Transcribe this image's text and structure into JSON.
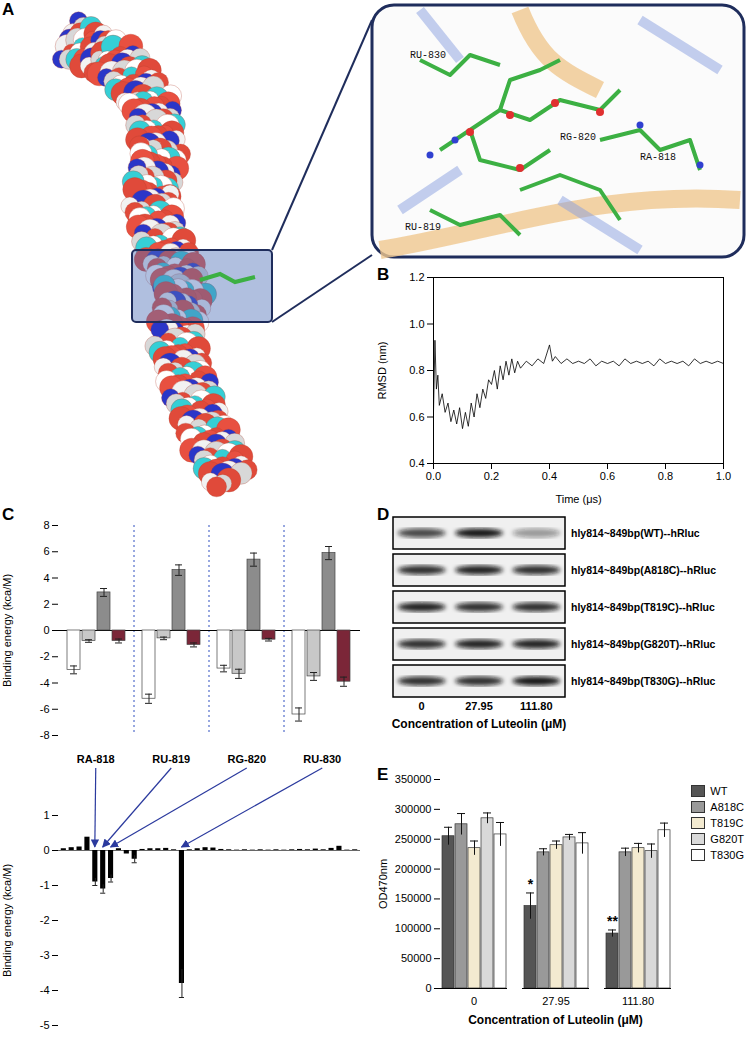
{
  "panels": {
    "A": {
      "label": "A",
      "residues": [
        "RU-830",
        "RG-820",
        "RA-818",
        "RU-819"
      ]
    },
    "D": {
      "label": "D",
      "rows": [
        {
          "label": "hly814~849bp(WT)--hRluc",
          "bands": [
            0.75,
            0.95,
            0.4
          ]
        },
        {
          "label": "hly814~849bp(A818C)--hRluc",
          "bands": [
            0.85,
            0.9,
            0.85
          ]
        },
        {
          "label": "hly814~849bp(T819C)--hRluc",
          "bands": [
            0.9,
            0.85,
            0.85
          ]
        },
        {
          "label": "hly814~849bp(G820T)--hRluc",
          "bands": [
            0.85,
            0.9,
            0.9
          ]
        },
        {
          "label": "hly814~849bp(T830G)--hRluc",
          "bands": [
            0.85,
            0.85,
            0.95
          ]
        }
      ],
      "lanes": [
        "0",
        "27.95",
        "111.80"
      ],
      "xlabel": "Concentration of Luteolin (μM)"
    }
  },
  "chart_data": [
    {
      "type": "line",
      "title": "B",
      "xlabel": "Time (μs)",
      "ylabel": "RMSD (nm)",
      "color": "#000000",
      "x": [
        0,
        0.005,
        0.01,
        0.015,
        0.02,
        0.03,
        0.04,
        0.05,
        0.06,
        0.07,
        0.08,
        0.09,
        0.1,
        0.11,
        0.12,
        0.13,
        0.14,
        0.15,
        0.16,
        0.17,
        0.18,
        0.19,
        0.2,
        0.21,
        0.22,
        0.23,
        0.24,
        0.25,
        0.26,
        0.27,
        0.28,
        0.29,
        0.3,
        0.32,
        0.34,
        0.36,
        0.38,
        0.4,
        0.41,
        0.42,
        0.44,
        0.46,
        0.48,
        0.5,
        0.52,
        0.54,
        0.56,
        0.58,
        0.6,
        0.62,
        0.64,
        0.66,
        0.68,
        0.7,
        0.72,
        0.74,
        0.76,
        0.78,
        0.8,
        0.82,
        0.84,
        0.86,
        0.88,
        0.9,
        0.92,
        0.94,
        0.96,
        0.98,
        1.0
      ],
      "values": [
        0.62,
        0.93,
        0.72,
        0.78,
        0.65,
        0.7,
        0.62,
        0.66,
        0.58,
        0.63,
        0.57,
        0.64,
        0.55,
        0.62,
        0.56,
        0.66,
        0.6,
        0.7,
        0.64,
        0.72,
        0.68,
        0.76,
        0.74,
        0.8,
        0.72,
        0.82,
        0.76,
        0.84,
        0.78,
        0.85,
        0.79,
        0.84,
        0.81,
        0.84,
        0.82,
        0.85,
        0.83,
        0.91,
        0.84,
        0.86,
        0.83,
        0.85,
        0.83,
        0.84,
        0.83,
        0.85,
        0.82,
        0.84,
        0.83,
        0.84,
        0.82,
        0.85,
        0.83,
        0.84,
        0.83,
        0.84,
        0.82,
        0.85,
        0.83,
        0.84,
        0.83,
        0.84,
        0.82,
        0.85,
        0.83,
        0.84,
        0.83,
        0.84,
        0.83
      ],
      "xlim": [
        0,
        1
      ],
      "xticks": [
        {
          "value": 0,
          "label": "0.0"
        },
        0.2,
        0.4,
        0.6,
        0.8,
        {
          "value": 1,
          "label": "1.0"
        }
      ],
      "ylim": [
        0.4,
        1.2
      ],
      "yticks": [
        0.4,
        0.6,
        0.8,
        {
          "value": 1,
          "label": "1.0"
        },
        1.2
      ]
    },
    {
      "type": "bar",
      "title": "C",
      "ylabel": "Binding energy (kca/M)",
      "tick_labels": "y",
      "categories": [
        null,
        null,
        null,
        null
      ],
      "series": [
        {
          "color": "#ffffff",
          "values": [
            -3.0,
            -5.2,
            -2.9,
            -6.4
          ],
          "errors": [
            0.3,
            0.35,
            0.25,
            0.5
          ]
        },
        {
          "color": "#c8c8c8",
          "values": [
            -0.8,
            -0.6,
            -3.3,
            -3.5
          ],
          "errors": [
            0.1,
            0.1,
            0.35,
            0.3
          ]
        },
        {
          "color": "#8c8c8c",
          "values": [
            2.9,
            4.6,
            5.4,
            5.9
          ],
          "errors": [
            0.3,
            0.4,
            0.5,
            0.5
          ]
        },
        {
          "color": "#7b2638",
          "values": [
            -0.8,
            -1.1,
            -0.7,
            -3.9
          ],
          "errors": [
            0.15,
            0.15,
            0.1,
            0.35
          ]
        }
      ],
      "ylim": [
        -8,
        8
      ],
      "yticks": [
        -8,
        -6,
        -4,
        -2,
        0,
        2,
        4,
        6,
        8
      ]
    },
    {
      "type": "bar",
      "ylabel": "Binding energy (kca/M)",
      "tick_labels": "y",
      "color": "#000000",
      "categories": [
        null,
        null,
        null,
        null,
        null,
        null,
        null,
        null,
        null,
        null,
        null,
        null,
        null,
        null,
        null,
        null,
        null,
        null,
        null,
        null,
        null,
        null,
        null,
        null,
        null,
        null,
        null,
        null,
        null,
        null,
        null,
        null,
        null,
        null,
        null,
        null,
        null,
        null
      ],
      "values": [
        0.05,
        0.08,
        0.1,
        0.38,
        -0.9,
        -1.1,
        -0.8,
        0.05,
        -0.1,
        -0.25,
        0.03,
        0.05,
        0.05,
        0.06,
        0.02,
        -3.8,
        0.02,
        0.05,
        0.08,
        0.07,
        0.03,
        0.02,
        0.01,
        0.02,
        0.01,
        0.02,
        0.01,
        0.02,
        0.01,
        0.02,
        0.03,
        0.02,
        0.04,
        0.02,
        0.06,
        0.12,
        0.01,
        0.02
      ],
      "errors": [
        0,
        0,
        0,
        0,
        0.1,
        0.12,
        0.1,
        0,
        0,
        0.1,
        0,
        0,
        0,
        0,
        0,
        0.4,
        0,
        0,
        0,
        0,
        0,
        0,
        0,
        0,
        0,
        0,
        0,
        0,
        0,
        0,
        0,
        0,
        0,
        0,
        0,
        0,
        0,
        0
      ],
      "annotations": [
        {
          "text": "RA-818",
          "target": 4
        },
        {
          "text": "RU-819",
          "target": 5
        },
        {
          "text": "RG-820",
          "target": 6
        },
        {
          "text": "RU-830",
          "target": 15
        }
      ],
      "ylim": [
        -5,
        1
      ],
      "yticks": [
        -5,
        -4,
        -3,
        -2,
        -1,
        0,
        1
      ]
    },
    {
      "type": "bar",
      "title": "E",
      "xlabel": "Concentration of Luteolin (μM)",
      "ylabel": "OD470nm",
      "legend": "right",
      "categories": [
        "0",
        "27.95",
        "111.80"
      ],
      "series": [
        {
          "name": "WT",
          "color": "#555555",
          "values": [
            255000,
            138000,
            92000
          ],
          "errors": [
            15000,
            22000,
            6000
          ]
        },
        {
          "name": "A818C",
          "color": "#999999",
          "values": [
            275000,
            228000,
            228000
          ],
          "errors": [
            18000,
            6000,
            7000
          ]
        },
        {
          "name": "T819C",
          "color": "#f3ead0",
          "values": [
            235000,
            240000,
            235000
          ],
          "errors": [
            12000,
            7000,
            8000
          ]
        },
        {
          "name": "G820T",
          "color": "#d9d9d9",
          "values": [
            285000,
            253000,
            230000
          ],
          "errors": [
            9000,
            5000,
            12000
          ]
        },
        {
          "name": "T830G",
          "color": "#ffffff",
          "values": [
            258000,
            243000,
            265000
          ],
          "errors": [
            20000,
            18000,
            12000
          ]
        }
      ],
      "annotations": [
        {
          "category": "27.95",
          "series": "WT",
          "text": "*"
        },
        {
          "category": "111.80",
          "series": "WT",
          "text": "**"
        }
      ],
      "ylim": [
        0,
        350000
      ],
      "yticks": [
        0,
        50000,
        100000,
        150000,
        200000,
        250000,
        300000,
        350000
      ]
    }
  ]
}
